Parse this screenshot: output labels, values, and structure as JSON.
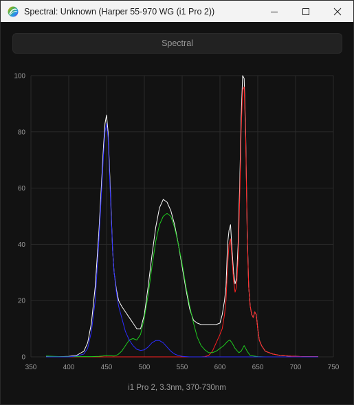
{
  "window": {
    "title": "Spectral: Unknown (Harper 55-970 WG (i1 Pro 2))",
    "minimize_icon": "minimize-icon",
    "maximize_icon": "maximize-icon",
    "close_icon": "close-icon"
  },
  "toolbar": {
    "spectral_label": "Spectral"
  },
  "caption": "i1 Pro 2, 3.3nm, 370-730nm",
  "colors": {
    "white": "#ffffff",
    "red": "#ff2020",
    "green": "#1fcc1f",
    "blue": "#2c2cff",
    "grid": "#2a2a2a"
  },
  "chart_data": {
    "type": "line",
    "xlim": [
      350,
      750
    ],
    "ylim": [
      0,
      100
    ],
    "xticks": [
      350,
      400,
      450,
      500,
      550,
      600,
      650,
      700,
      750
    ],
    "yticks": [
      0,
      20,
      40,
      60,
      80,
      100
    ],
    "grid": true,
    "series": [
      {
        "color": "#ffffff",
        "x": [
          370,
          380,
          390,
          400,
          410,
          420,
          425,
          430,
          435,
          440,
          443,
          446,
          448,
          450,
          452,
          455,
          458,
          460,
          463,
          466,
          470,
          475,
          480,
          485,
          490,
          495,
          500,
          505,
          510,
          515,
          520,
          525,
          530,
          535,
          540,
          545,
          550,
          555,
          560,
          565,
          570,
          575,
          580,
          585,
          590,
          595,
          600,
          603,
          606,
          608,
          610,
          612,
          614,
          616,
          618,
          620,
          622,
          624,
          626,
          628,
          630,
          632,
          634,
          636,
          638,
          640,
          642,
          644,
          646,
          648,
          650,
          652,
          655,
          660,
          665,
          670,
          680,
          690,
          700,
          710,
          720,
          730
        ],
        "y": [
          0.1,
          0.1,
          0.1,
          0.2,
          0.5,
          2,
          5,
          12,
          25,
          45,
          60,
          75,
          83,
          86,
          80,
          60,
          38,
          30,
          24,
          20,
          18,
          16,
          14,
          12,
          10,
          10,
          15,
          25,
          36,
          46,
          53,
          56,
          55,
          52,
          47,
          40,
          32,
          24,
          17,
          13,
          12,
          11.5,
          11.5,
          11.5,
          11.5,
          11.5,
          12,
          15,
          20,
          25,
          40,
          45,
          47,
          38,
          30,
          26,
          28,
          40,
          60,
          85,
          100,
          99,
          80,
          45,
          25,
          18,
          15,
          14,
          16,
          15,
          10,
          6,
          4,
          2,
          1.5,
          1,
          0.5,
          0.3,
          0.2,
          0.1,
          0.1,
          0.1
        ]
      },
      {
        "color": "#ff2020",
        "x": [
          370,
          400,
          450,
          500,
          550,
          560,
          570,
          575,
          580,
          585,
          590,
          595,
          600,
          603,
          606,
          608,
          610,
          612,
          614,
          616,
          618,
          620,
          622,
          624,
          626,
          628,
          630,
          632,
          634,
          636,
          638,
          640,
          642,
          644,
          646,
          648,
          650,
          652,
          655,
          660,
          665,
          670,
          680,
          690,
          700,
          710,
          720,
          730
        ],
        "y": [
          0,
          0,
          0,
          0,
          0,
          0,
          0,
          0,
          0.1,
          0.5,
          2,
          5,
          8,
          10,
          15,
          20,
          32,
          40,
          42,
          35,
          27,
          23,
          25,
          35,
          55,
          80,
          95,
          96,
          78,
          44,
          25,
          18,
          15,
          14,
          16,
          15,
          10,
          6,
          4,
          2,
          1.5,
          1,
          0.5,
          0.3,
          0.2,
          0.1,
          0.1,
          0.1
        ]
      },
      {
        "color": "#1fcc1f",
        "x": [
          370,
          380,
          390,
          400,
          420,
          430,
          440,
          445,
          450,
          455,
          460,
          465,
          470,
          475,
          480,
          485,
          490,
          495,
          500,
          505,
          510,
          515,
          520,
          525,
          530,
          535,
          540,
          545,
          550,
          555,
          560,
          565,
          570,
          575,
          580,
          585,
          590,
          595,
          600,
          605,
          610,
          613,
          616,
          620,
          625,
          628,
          630,
          632,
          634,
          636,
          640,
          650,
          660,
          680,
          700,
          730
        ],
        "y": [
          0.3,
          0.2,
          0.1,
          0.1,
          0.1,
          0.1,
          0.2,
          0.3,
          0.5,
          0.4,
          0.3,
          0.8,
          2,
          4,
          6,
          6.5,
          6,
          8,
          14,
          22,
          32,
          41,
          47,
          50,
          51,
          50,
          46,
          40,
          33,
          25,
          18,
          12,
          7,
          4,
          2.5,
          1.5,
          1.5,
          2,
          3,
          4,
          5.5,
          6,
          5,
          3,
          1.5,
          2,
          3,
          4,
          3,
          2,
          0.5,
          0.1,
          0,
          0,
          0,
          0
        ]
      },
      {
        "color": "#2c2cff",
        "x": [
          370,
          380,
          390,
          400,
          410,
          420,
          425,
          430,
          435,
          440,
          443,
          446,
          448,
          450,
          452,
          455,
          458,
          460,
          463,
          466,
          470,
          475,
          480,
          485,
          490,
          495,
          500,
          505,
          510,
          515,
          520,
          525,
          530,
          535,
          540,
          545,
          550,
          555,
          560,
          570,
          580,
          590,
          600,
          650,
          700,
          730
        ],
        "y": [
          0,
          0,
          0,
          0,
          0.3,
          1,
          3,
          9,
          20,
          42,
          57,
          72,
          80,
          83,
          78,
          58,
          38,
          30,
          23,
          18,
          14,
          9,
          6,
          4,
          2.7,
          2.3,
          2.5,
          3.5,
          5,
          5.8,
          5.8,
          5,
          3.5,
          2,
          1,
          0.5,
          0.2,
          0.1,
          0,
          0,
          0,
          0,
          0,
          0,
          0,
          0
        ]
      }
    ]
  }
}
